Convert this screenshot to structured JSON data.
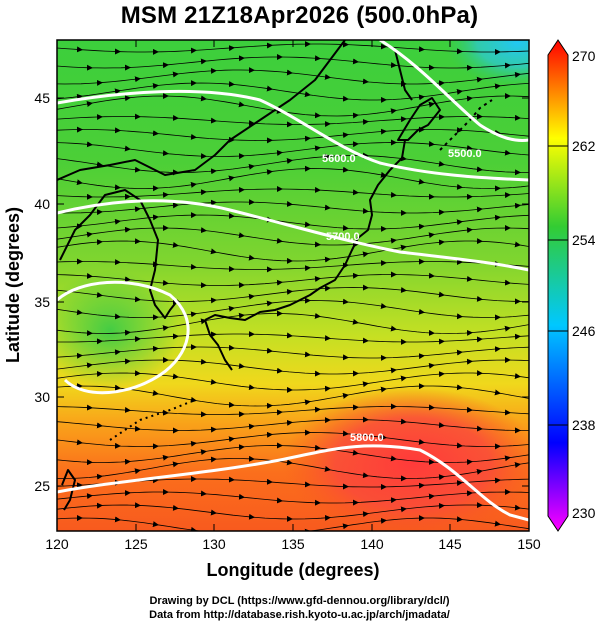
{
  "title": "MSM 21Z18Apr2026 (500.0hPa)",
  "axes": {
    "xlabel": "Longitude (degrees)",
    "ylabel": "Latitude  (degrees)",
    "x_ticks": [
      "120",
      "125",
      "130",
      "135",
      "140",
      "145",
      "150"
    ],
    "y_ticks": [
      "25",
      "30",
      "35",
      "40",
      "45"
    ],
    "xlim": [
      120,
      150
    ],
    "ylim": [
      22.4,
      47.6
    ]
  },
  "colorbar": {
    "ticks": [
      "270",
      "262",
      "254",
      "246",
      "238",
      "230"
    ],
    "range": [
      230,
      270
    ],
    "colors": {
      "low": "#ff00ff",
      "mid_low": "#0000ff",
      "mid": "#00c8ff",
      "mid_high": "#33cc33",
      "high_mid": "#ffff00",
      "high": "#ff0000"
    }
  },
  "contours": [
    {
      "value": "5500.0",
      "lat_at_left": 46.5
    },
    {
      "value": "5600.0",
      "lat_at_left": 43.5
    },
    {
      "value": "5700.0",
      "lat_at_left": 40.0
    },
    {
      "value": "5800.0",
      "lat_at_left": 25.0
    }
  ],
  "credits": {
    "line1": "Drawing by DCL (https://www.gfd-dennou.org/library/dcl/)",
    "line2": "Data from http://database.rish.kyoto-u.ac.jp/arch/jmadata/"
  }
}
